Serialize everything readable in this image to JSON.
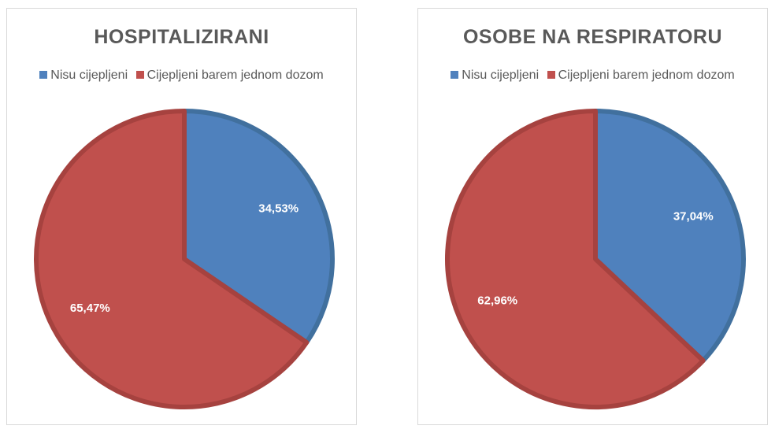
{
  "chart_data": [
    {
      "type": "pie",
      "title": "HOSPITALIZIRANI",
      "legend_position": "top",
      "slices": [
        {
          "name": "Nisu cijepljeni",
          "value": 34.53,
          "label": "34,53%",
          "color": "#4f81bd",
          "edge": "#41709e"
        },
        {
          "name": "Cijepljeni barem jednom dozom",
          "value": 65.47,
          "label": "65,47%",
          "color": "#c0504d",
          "edge": "#a6423f"
        }
      ]
    },
    {
      "type": "pie",
      "title": "OSOBE NA RESPIRATORU",
      "legend_position": "top",
      "slices": [
        {
          "name": "Nisu cijepljeni",
          "value": 37.04,
          "label": "37,04%",
          "color": "#4f81bd",
          "edge": "#41709e"
        },
        {
          "name": "Cijepljeni barem jednom dozom",
          "value": 62.96,
          "label": "62,96%",
          "color": "#c0504d",
          "edge": "#a6423f"
        }
      ]
    }
  ]
}
